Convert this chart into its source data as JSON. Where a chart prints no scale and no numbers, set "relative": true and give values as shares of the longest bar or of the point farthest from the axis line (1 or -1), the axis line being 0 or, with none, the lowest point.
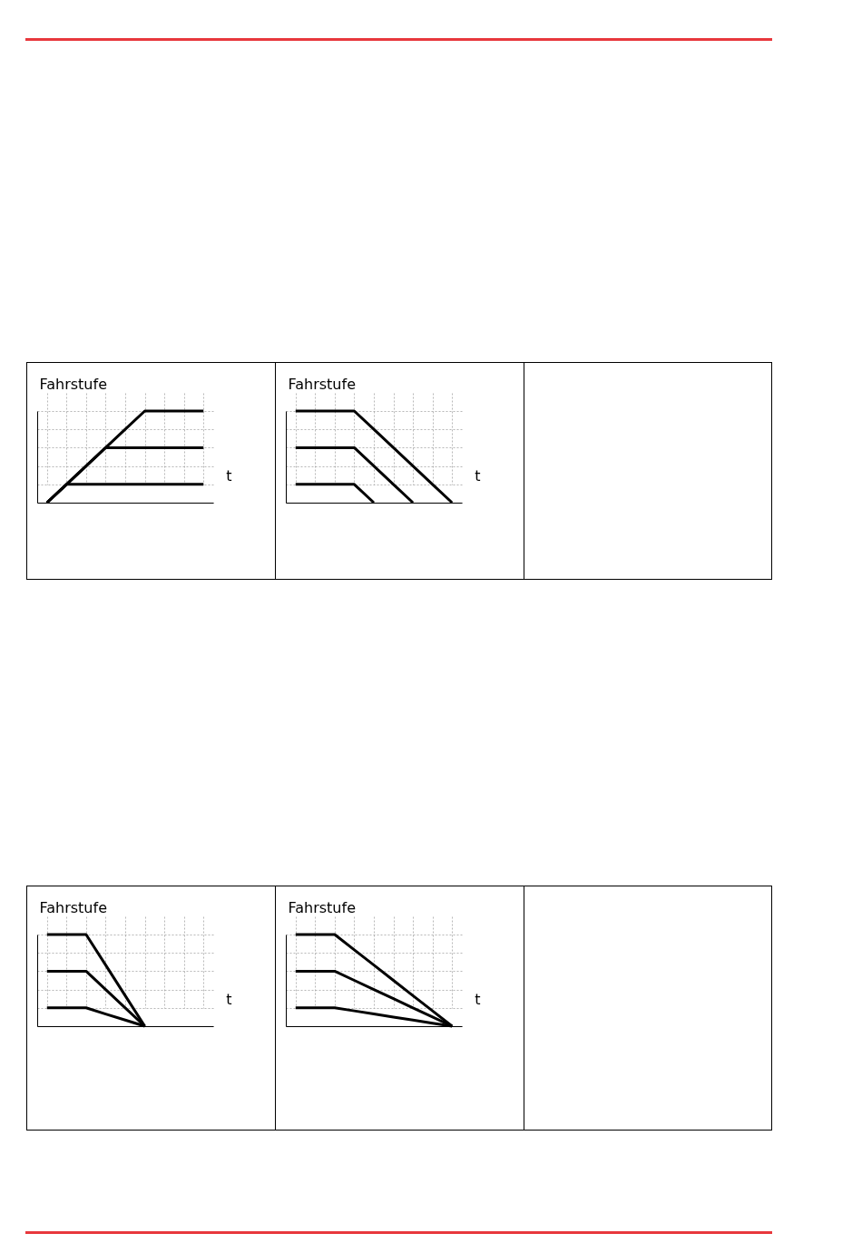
{
  "chart_data": [
    {
      "type": "line",
      "relative": true,
      "ylabel": "Fahrstufe",
      "xlabel": "t",
      "grid": true,
      "categories": [
        null,
        null,
        null,
        null,
        null,
        null,
        null,
        null,
        null
      ],
      "series": [
        {
          "color": "#000000",
          "values": [
            0,
            0.2,
            0.2,
            0.2,
            0.2,
            0.2,
            0.2,
            0.2,
            0.2
          ]
        },
        {
          "color": "#000000",
          "values": [
            0,
            0.2,
            0.4,
            0.6,
            0.6,
            0.6,
            0.6,
            0.6,
            0.6
          ]
        },
        {
          "color": "#000000",
          "values": [
            0,
            0.2,
            0.4,
            0.6,
            0.8,
            1,
            1,
            1,
            1
          ]
        }
      ]
    },
    {
      "type": "line",
      "relative": true,
      "ylabel": "Fahrstufe",
      "xlabel": "t",
      "grid": true,
      "categories": [
        null,
        null,
        null,
        null,
        null,
        null,
        null,
        null,
        null
      ],
      "series": [
        {
          "color": "#000000",
          "values": [
            0.2,
            0.2,
            0.2,
            0.2,
            0,
            null,
            null,
            null,
            null
          ]
        },
        {
          "color": "#000000",
          "values": [
            0.6,
            0.6,
            0.6,
            0.6,
            0.4,
            0.2,
            0,
            null,
            null
          ]
        },
        {
          "color": "#000000",
          "values": [
            1,
            1,
            1,
            1,
            0.8,
            0.6,
            0.4,
            0.2,
            0
          ]
        }
      ]
    },
    {
      "type": "line",
      "relative": true,
      "ylabel": "Fahrstufe",
      "xlabel": "t",
      "grid": true,
      "categories": [
        null,
        null,
        null,
        null,
        null,
        null,
        null,
        null,
        null
      ],
      "series": [
        {
          "color": "#000000",
          "values": [
            0.2,
            0.2,
            0.2,
            0.133,
            0.067,
            0,
            null,
            null,
            null
          ]
        },
        {
          "color": "#000000",
          "values": [
            0.6,
            0.6,
            0.6,
            0.4,
            0.2,
            0,
            null,
            null,
            null
          ]
        },
        {
          "color": "#000000",
          "values": [
            1,
            1,
            1,
            0.667,
            0.333,
            0,
            null,
            null,
            null
          ]
        }
      ]
    },
    {
      "type": "line",
      "relative": true,
      "ylabel": "Fahrstufe",
      "xlabel": "t",
      "grid": true,
      "categories": [
        null,
        null,
        null,
        null,
        null,
        null,
        null,
        null,
        null
      ],
      "series": [
        {
          "color": "#000000",
          "values": [
            0.2,
            0.2,
            0.2,
            0.167,
            0.133,
            0.1,
            0.067,
            0.033,
            0
          ]
        },
        {
          "color": "#000000",
          "values": [
            0.6,
            0.6,
            0.6,
            0.5,
            0.4,
            0.3,
            0.2,
            0.1,
            0
          ]
        },
        {
          "color": "#000000",
          "values": [
            1,
            1,
            1,
            0.833,
            0.667,
            0.5,
            0.333,
            0.167,
            0
          ]
        }
      ]
    }
  ]
}
